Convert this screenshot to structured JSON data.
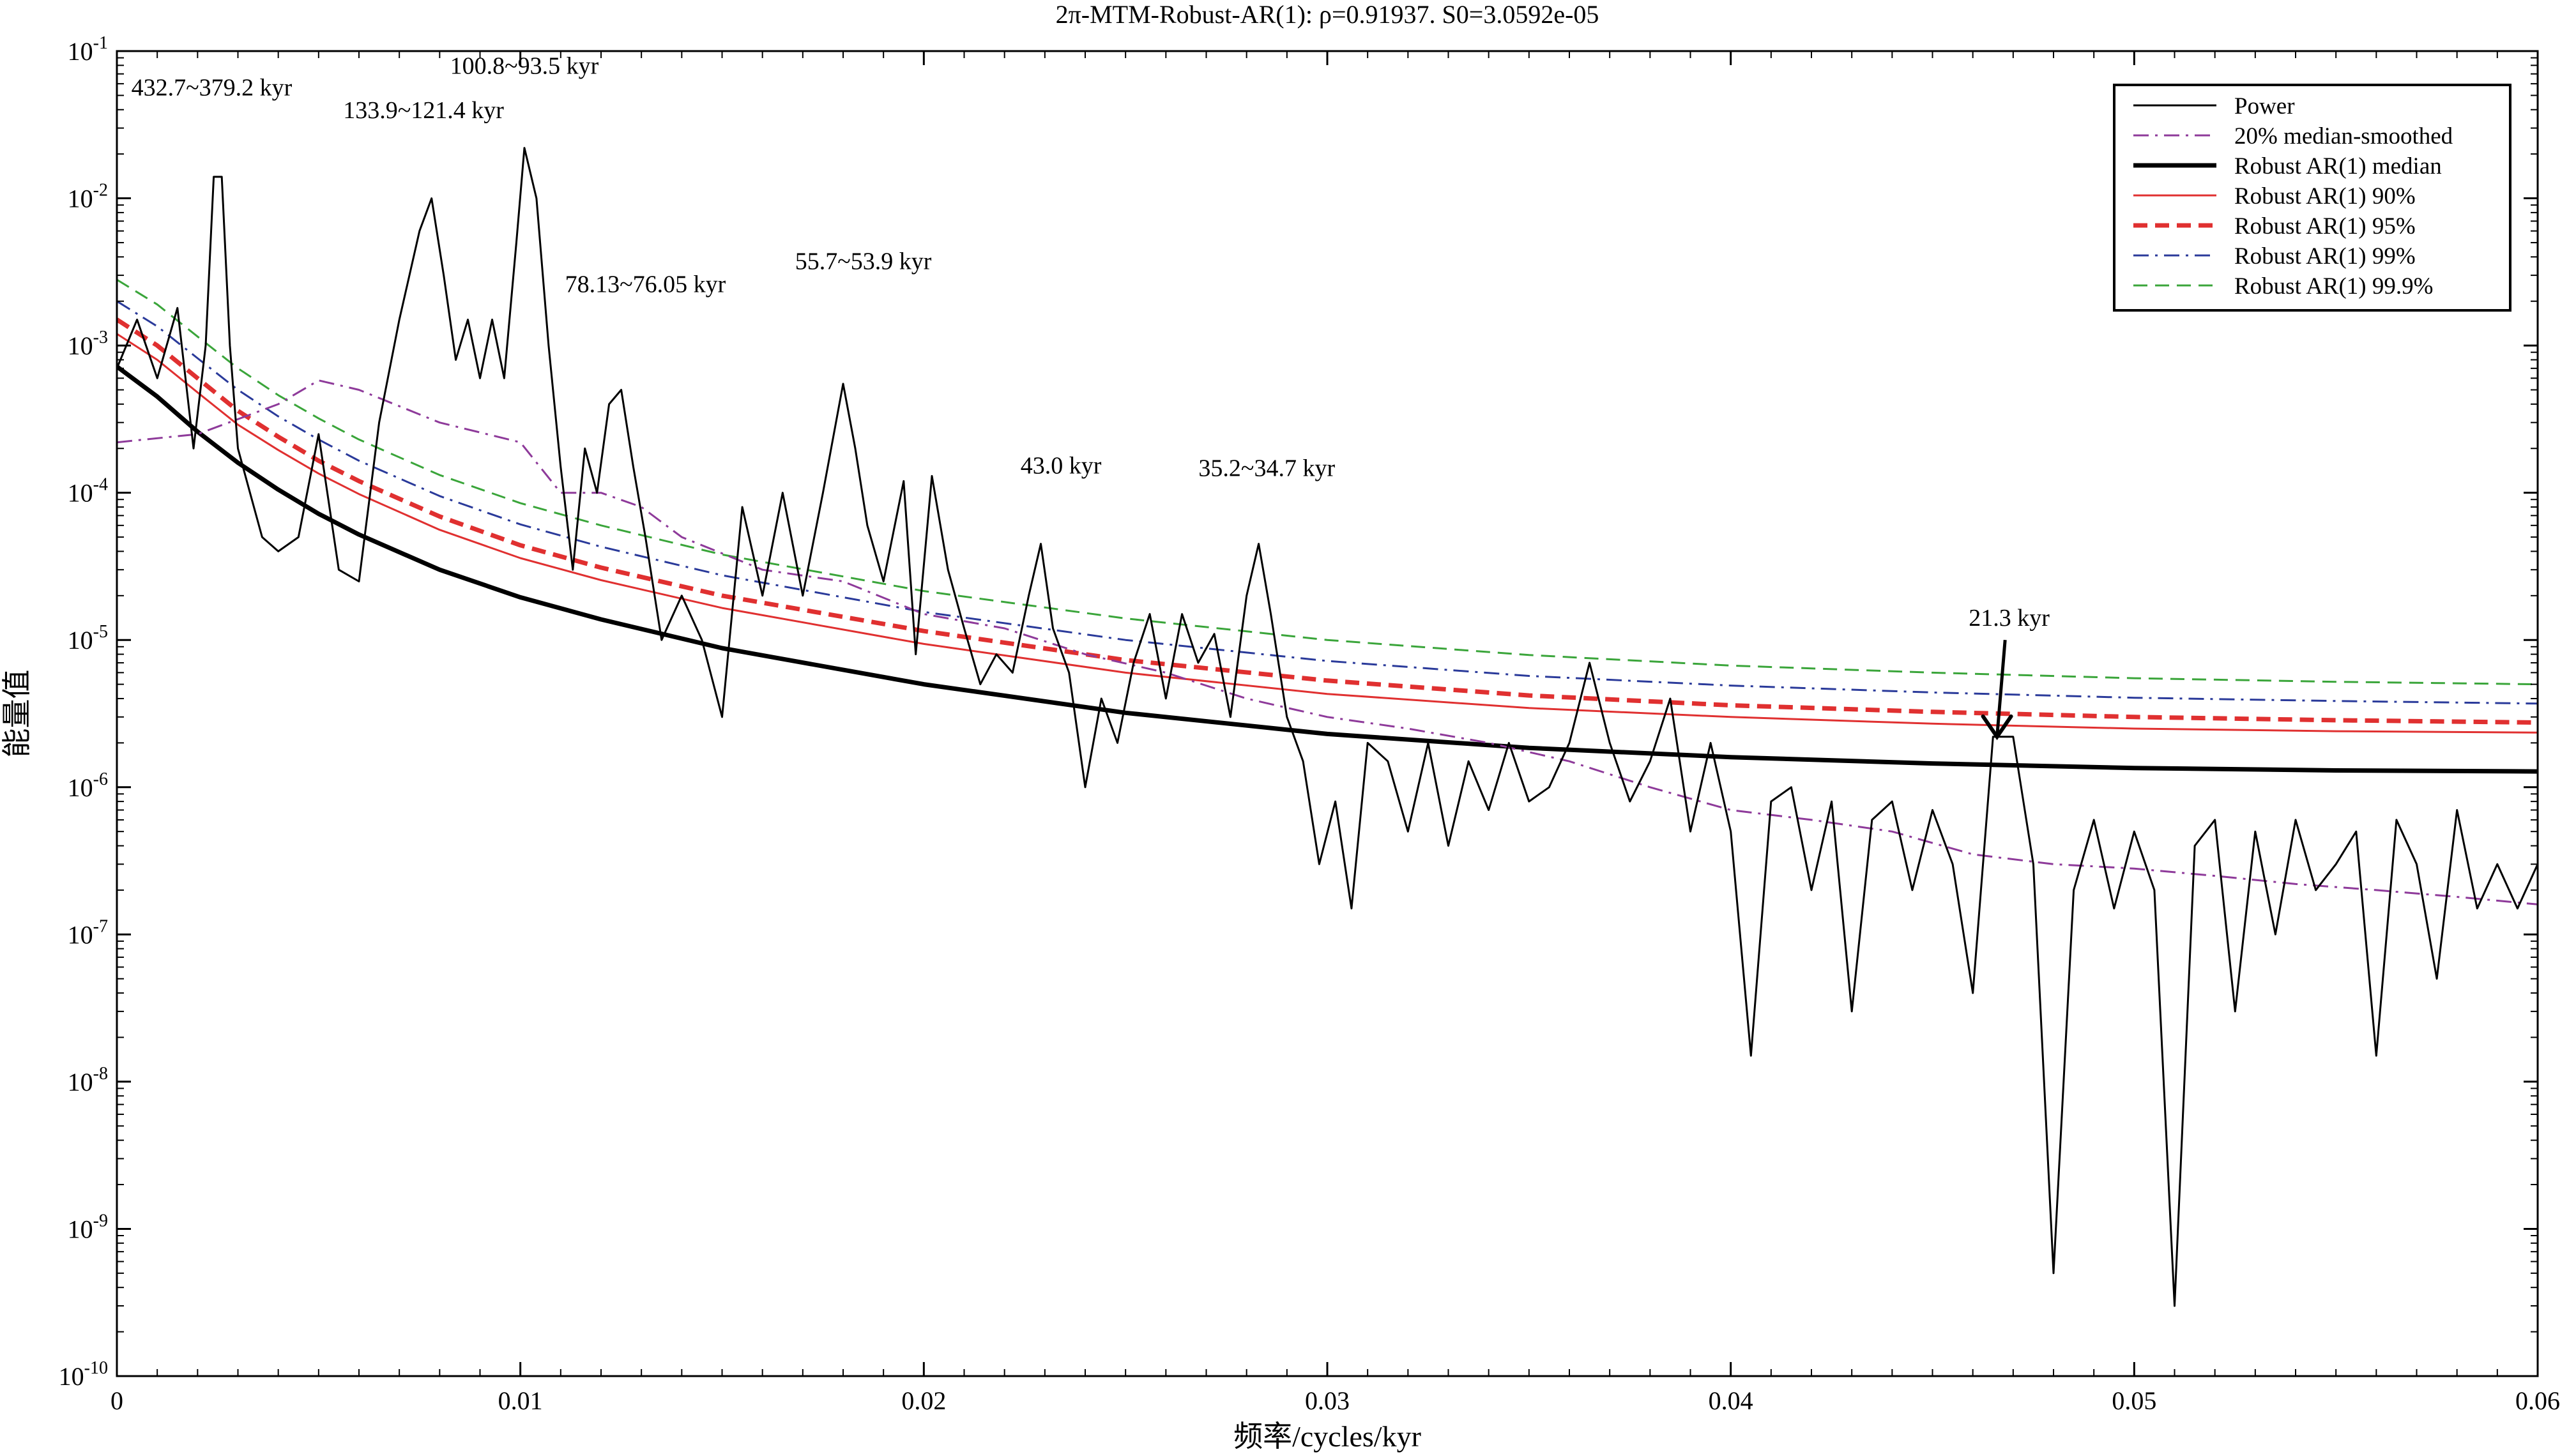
{
  "chart_data": {
    "type": "line",
    "title": "2π-MTM-Robust-AR(1): ρ=0.91937. S0=3.0592e-05",
    "xlabel": "频率/cycles/kyr",
    "ylabel": "能量值",
    "xlim": [
      0,
      0.06
    ],
    "ylim": [
      1e-10,
      0.1
    ],
    "yscale": "log",
    "grid": false,
    "legend_position": "top-right",
    "x_ticks": [
      {
        "value": 0,
        "label": "0"
      },
      {
        "value": 0.01,
        "label": "0.01"
      },
      {
        "value": 0.02,
        "label": "0.02"
      },
      {
        "value": 0.03,
        "label": "0.03"
      },
      {
        "value": 0.04,
        "label": "0.04"
      },
      {
        "value": 0.05,
        "label": "0.05"
      },
      {
        "value": 0.06,
        "label": "0.06"
      }
    ],
    "y_ticks": [
      {
        "exp": -1,
        "base": "10",
        "sup": "-1"
      },
      {
        "exp": -2,
        "base": "10",
        "sup": "-2"
      },
      {
        "exp": -3,
        "base": "10",
        "sup": "-3"
      },
      {
        "exp": -4,
        "base": "10",
        "sup": "-4"
      },
      {
        "exp": -5,
        "base": "10",
        "sup": "-5"
      },
      {
        "exp": -6,
        "base": "10",
        "sup": "-6"
      },
      {
        "exp": -7,
        "base": "10",
        "sup": "-7"
      },
      {
        "exp": -8,
        "base": "10",
        "sup": "-8"
      },
      {
        "exp": -9,
        "base": "10",
        "sup": "-9"
      },
      {
        "exp": -10,
        "base": "10",
        "sup": "-10"
      }
    ],
    "series": [
      {
        "name": "Power",
        "color": "#000000",
        "style": "solid",
        "width": 3,
        "x": [
          0,
          0.0005,
          0.001,
          0.0015,
          0.0019,
          0.0022,
          0.0024,
          0.0026,
          0.0028,
          0.003,
          0.0033,
          0.0036,
          0.004,
          0.0045,
          0.005,
          0.0055,
          0.006,
          0.0065,
          0.007,
          0.0075,
          0.0078,
          0.0081,
          0.0084,
          0.0087,
          0.009,
          0.0093,
          0.0096,
          0.0099,
          0.0101,
          0.0104,
          0.0107,
          0.011,
          0.0113,
          0.0116,
          0.0119,
          0.0122,
          0.0125,
          0.0128,
          0.0131,
          0.0135,
          0.014,
          0.0145,
          0.015,
          0.0155,
          0.016,
          0.0165,
          0.017,
          0.0175,
          0.018,
          0.0183,
          0.0186,
          0.019,
          0.0195,
          0.0198,
          0.0202,
          0.0206,
          0.021,
          0.0214,
          0.0218,
          0.0222,
          0.0226,
          0.0229,
          0.0232,
          0.0236,
          0.024,
          0.0244,
          0.0248,
          0.0252,
          0.0256,
          0.026,
          0.0264,
          0.0268,
          0.0272,
          0.0276,
          0.028,
          0.0283,
          0.0286,
          0.029,
          0.0294,
          0.0298,
          0.0302,
          0.0306,
          0.031,
          0.0315,
          0.032,
          0.0325,
          0.033,
          0.0335,
          0.034,
          0.0345,
          0.035,
          0.0355,
          0.036,
          0.0365,
          0.037,
          0.0375,
          0.038,
          0.0385,
          0.039,
          0.0395,
          0.04,
          0.0405,
          0.041,
          0.0415,
          0.042,
          0.0425,
          0.043,
          0.0435,
          0.044,
          0.0445,
          0.045,
          0.0455,
          0.046,
          0.0465,
          0.047,
          0.0475,
          0.048,
          0.0485,
          0.049,
          0.0495,
          0.05,
          0.0505,
          0.051,
          0.0515,
          0.052,
          0.0525,
          0.053,
          0.0535,
          0.054,
          0.0545,
          0.055,
          0.0555,
          0.056,
          0.0565,
          0.057,
          0.0575,
          0.058,
          0.0585,
          0.059,
          0.0595,
          0.06
        ],
        "y": [
          0.0007,
          0.0015,
          0.0006,
          0.0018,
          0.0002,
          0.001,
          0.014,
          0.014,
          0.001,
          0.0002,
          0.0001,
          5e-05,
          4e-05,
          5e-05,
          0.00025,
          3e-05,
          2.5e-05,
          0.0003,
          0.0015,
          0.006,
          0.01,
          0.003,
          0.0008,
          0.0015,
          0.0006,
          0.0015,
          0.0006,
          0.005,
          0.022,
          0.01,
          0.001,
          0.00015,
          3e-05,
          0.0002,
          0.0001,
          0.0004,
          0.0005,
          0.00015,
          5e-05,
          1e-05,
          2e-05,
          1e-05,
          3e-06,
          8e-05,
          2e-05,
          0.0001,
          2e-05,
          0.0001,
          0.00055,
          0.0002,
          6e-05,
          2.5e-05,
          0.00012,
          8e-06,
          0.00013,
          3e-05,
          1.2e-05,
          5e-06,
          8e-06,
          6e-06,
          2e-05,
          4.5e-05,
          1.2e-05,
          6e-06,
          1e-06,
          4e-06,
          2e-06,
          7e-06,
          1.5e-05,
          4e-06,
          1.5e-05,
          7e-06,
          1.1e-05,
          3e-06,
          2e-05,
          4.5e-05,
          1.5e-05,
          3e-06,
          1.5e-06,
          3e-07,
          8e-07,
          1.5e-07,
          2e-06,
          1.5e-06,
          5e-07,
          2e-06,
          4e-07,
          1.5e-06,
          7e-07,
          2e-06,
          8e-07,
          1e-06,
          2e-06,
          7e-06,
          2e-06,
          8e-07,
          1.5e-06,
          4e-06,
          5e-07,
          2e-06,
          5e-07,
          1.5e-08,
          8e-07,
          1e-06,
          2e-07,
          8e-07,
          3e-08,
          6e-07,
          8e-07,
          2e-07,
          7e-07,
          3e-07,
          4e-08,
          2.2e-06,
          2.2e-06,
          3e-07,
          5e-10,
          2e-07,
          6e-07,
          1.5e-07,
          5e-07,
          2e-07,
          3e-10,
          4e-07,
          6e-07,
          3e-08,
          5e-07,
          1e-07,
          6e-07,
          2e-07,
          3e-07,
          5e-07,
          1.5e-08,
          6e-07,
          3e-07,
          5e-08,
          7e-07,
          1.5e-07,
          3e-07,
          1.5e-07,
          3e-07
        ]
      },
      {
        "name": "20% median-smoothed",
        "color": "#8e3a9a",
        "style": "dashdot",
        "width": 3,
        "x": [
          0,
          0.002,
          0.004,
          0.005,
          0.006,
          0.008,
          0.01,
          0.011,
          0.012,
          0.013,
          0.014,
          0.016,
          0.018,
          0.02,
          0.022,
          0.024,
          0.026,
          0.028,
          0.03,
          0.032,
          0.034,
          0.036,
          0.038,
          0.04,
          0.042,
          0.044,
          0.046,
          0.048,
          0.05,
          0.052,
          0.054,
          0.056,
          0.058,
          0.06
        ],
        "y": [
          0.00022,
          0.00025,
          0.0004,
          0.00058,
          0.0005,
          0.0003,
          0.00022,
          0.0001,
          0.0001,
          8e-05,
          5e-05,
          3e-05,
          2.5e-05,
          1.5e-05,
          1.2e-05,
          8e-06,
          6e-06,
          4e-06,
          3e-06,
          2.5e-06,
          2e-06,
          1.5e-06,
          1e-06,
          7e-07,
          6e-07,
          5e-07,
          3.5e-07,
          3e-07,
          2.8e-07,
          2.5e-07,
          2.2e-07,
          2e-07,
          1.8e-07,
          1.6e-07
        ]
      },
      {
        "name": "Robust AR(1) median",
        "color": "#000000",
        "style": "solid",
        "width": 7,
        "x": [
          0,
          0.001,
          0.002,
          0.003,
          0.004,
          0.005,
          0.006,
          0.008,
          0.01,
          0.012,
          0.015,
          0.02,
          0.025,
          0.03,
          0.035,
          0.04,
          0.045,
          0.05,
          0.055,
          0.06
        ],
        "y": [
          0.00072,
          0.00045,
          0.00026,
          0.00016,
          0.000105,
          7.2e-05,
          5.2e-05,
          3e-05,
          1.95e-05,
          1.38e-05,
          8.8e-06,
          5e-06,
          3.2e-06,
          2.3e-06,
          1.85e-06,
          1.6e-06,
          1.45e-06,
          1.35e-06,
          1.3e-06,
          1.28e-06
        ]
      },
      {
        "name": "Robust AR(1) 90%",
        "color": "#e03030",
        "style": "solid",
        "width": 3,
        "x": [
          0,
          0.001,
          0.002,
          0.003,
          0.004,
          0.005,
          0.006,
          0.008,
          0.01,
          0.012,
          0.015,
          0.02,
          0.025,
          0.03,
          0.035,
          0.04,
          0.045,
          0.05,
          0.055,
          0.06
        ],
        "y": [
          0.0012,
          0.0008,
          0.00048,
          0.00029,
          0.000195,
          0.000135,
          9.8e-05,
          5.6e-05,
          3.6e-05,
          2.55e-05,
          1.65e-05,
          9.4e-06,
          6e-06,
          4.3e-06,
          3.45e-06,
          3e-06,
          2.7e-06,
          2.5e-06,
          2.4e-06,
          2.35e-06
        ]
      },
      {
        "name": "Robust AR(1) 95%",
        "color": "#e03030",
        "style": "dashed",
        "width": 7,
        "x": [
          0,
          0.001,
          0.002,
          0.003,
          0.004,
          0.005,
          0.006,
          0.008,
          0.01,
          0.012,
          0.015,
          0.02,
          0.025,
          0.03,
          0.035,
          0.04,
          0.045,
          0.05,
          0.055,
          0.06
        ],
        "y": [
          0.0015,
          0.001,
          0.0006,
          0.00036,
          0.00024,
          0.000165,
          0.00012,
          6.9e-05,
          4.4e-05,
          3.1e-05,
          2e-05,
          1.15e-05,
          7.3e-06,
          5.3e-06,
          4.2e-06,
          3.6e-06,
          3.25e-06,
          3e-06,
          2.85e-06,
          2.75e-06
        ]
      },
      {
        "name": "Robust AR(1) 99%",
        "color": "#2a3a9a",
        "style": "dashdot",
        "width": 3,
        "x": [
          0,
          0.001,
          0.002,
          0.003,
          0.004,
          0.005,
          0.006,
          0.008,
          0.01,
          0.012,
          0.015,
          0.02,
          0.025,
          0.03,
          0.035,
          0.04,
          0.045,
          0.05,
          0.055,
          0.06
        ],
        "y": [
          0.002,
          0.00135,
          0.00082,
          0.0005,
          0.00033,
          0.00023,
          0.000165,
          9.5e-05,
          6.1e-05,
          4.3e-05,
          2.75e-05,
          1.55e-05,
          1e-05,
          7.2e-06,
          5.7e-06,
          4.9e-06,
          4.4e-06,
          4.05e-06,
          3.85e-06,
          3.7e-06
        ]
      },
      {
        "name": "Robust AR(1) 99.9%",
        "color": "#3aa53a",
        "style": "dashed",
        "width": 3,
        "x": [
          0,
          0.001,
          0.002,
          0.003,
          0.004,
          0.005,
          0.006,
          0.008,
          0.01,
          0.012,
          0.015,
          0.02,
          0.025,
          0.03,
          0.035,
          0.04,
          0.045,
          0.05,
          0.055,
          0.06
        ],
        "y": [
          0.0028,
          0.0019,
          0.00115,
          0.0007,
          0.00046,
          0.00032,
          0.00023,
          0.000132,
          8.5e-05,
          6e-05,
          3.8e-05,
          2.15e-05,
          1.4e-05,
          1e-05,
          7.9e-06,
          6.7e-06,
          6e-06,
          5.5e-06,
          5.2e-06,
          5e-06
        ]
      }
    ],
    "annotations": [
      {
        "text": "432.7~379.2 kyr",
        "x": 0.00235,
        "y": 0.05,
        "anchor": "middle"
      },
      {
        "text": "133.9~121.4 kyr",
        "x": 0.0076,
        "y": 0.035,
        "anchor": "middle"
      },
      {
        "text": "100.8~93.5 kyr",
        "x": 0.0101,
        "y": 0.07,
        "anchor": "middle"
      },
      {
        "text": "78.13~76.05 kyr",
        "x": 0.0131,
        "y": 0.0023,
        "anchor": "middle"
      },
      {
        "text": "55.7~53.9 kyr",
        "x": 0.0185,
        "y": 0.0033,
        "anchor": "middle"
      },
      {
        "text": "43.0 kyr",
        "x": 0.0234,
        "y": 0.000135,
        "anchor": "middle"
      },
      {
        "text": "35.2~34.7 kyr",
        "x": 0.0285,
        "y": 0.00013,
        "anchor": "middle"
      },
      {
        "text": "21.3 kyr",
        "x": 0.0469,
        "y": 1.25e-05,
        "anchor": "middle"
      }
    ],
    "arrow": {
      "from_x": 0.0468,
      "from_y": 1e-05,
      "to_x": 0.0466,
      "to_y": 2.2e-06
    }
  }
}
